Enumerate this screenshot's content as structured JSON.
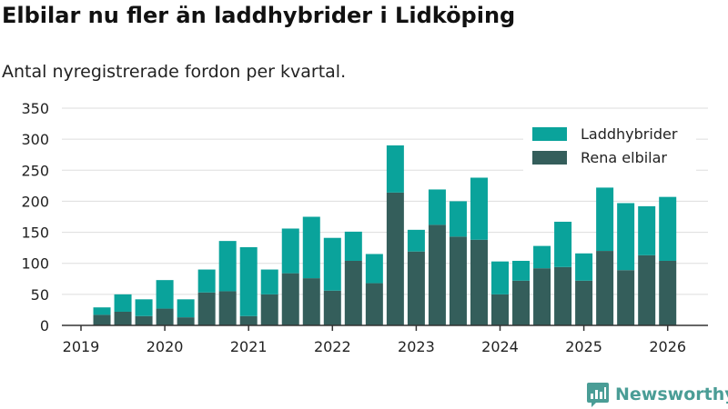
{
  "header": {
    "title": "Elbilar nu fler än laddhybrider i Lidköping",
    "subtitle": "Antal nyregistrerade fordon per kvartal."
  },
  "brand": {
    "name": "Newsworthy",
    "icon": "newsworthy-logo-icon",
    "color": "#4a9d96"
  },
  "colors": {
    "laddhybrider": "#0aa39b",
    "rena_elbilar": "#345e5b",
    "grid": "#dddddd",
    "axis": "#333333"
  },
  "chart_data": {
    "type": "bar",
    "stacked": true,
    "title": "Elbilar nu fler än laddhybrider i Lidköping",
    "subtitle": "Antal nyregistrerade fordon per kvartal.",
    "xlabel": "",
    "ylabel": "",
    "ylim": [
      0,
      350
    ],
    "yticks": [
      0,
      50,
      100,
      150,
      200,
      250,
      300,
      350
    ],
    "x_ticks": [
      "2019",
      "2020",
      "2021",
      "2022",
      "2023",
      "2024",
      "2025",
      "2026"
    ],
    "grid": "horizontal",
    "legend_position": "top-right",
    "categories": [
      "2019 Q2",
      "2019 Q3",
      "2019 Q4",
      "2020 Q1",
      "2020 Q2",
      "2020 Q3",
      "2020 Q4",
      "2021 Q1",
      "2021 Q2",
      "2021 Q3",
      "2021 Q4",
      "2022 Q1",
      "2022 Q2",
      "2022 Q3",
      "2022 Q4",
      "2023 Q1",
      "2023 Q2",
      "2023 Q3",
      "2023 Q4",
      "2024 Q1",
      "2024 Q2",
      "2024 Q3",
      "2024 Q4",
      "2025 Q1",
      "2025 Q2",
      "2025 Q3",
      "2025 Q4",
      "2026 Q1"
    ],
    "series": [
      {
        "name": "Rena elbilar",
        "color": "#345e5b",
        "values": [
          17,
          22,
          15,
          27,
          13,
          53,
          55,
          15,
          50,
          84,
          76,
          56,
          104,
          68,
          214,
          119,
          162,
          143,
          138,
          50,
          72,
          92,
          94,
          72,
          120,
          89,
          113,
          104
        ]
      },
      {
        "name": "Laddhybrider",
        "color": "#0aa39b",
        "values": [
          12,
          28,
          27,
          46,
          29,
          37,
          81,
          111,
          40,
          72,
          99,
          85,
          47,
          47,
          76,
          35,
          57,
          57,
          100,
          53,
          32,
          36,
          73,
          44,
          102,
          108,
          79,
          103
        ]
      }
    ]
  }
}
